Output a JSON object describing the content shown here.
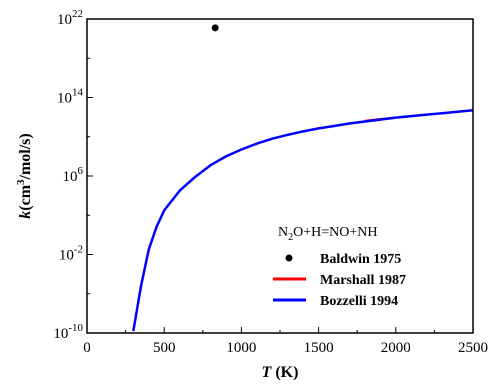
{
  "chart_data": {
    "type": "line",
    "xlabel": {
      "var": "T",
      "unit": " (K)"
    },
    "ylabel": {
      "var": "k",
      "unit_pre": "(cm",
      "unit_sup": "3",
      "unit_post": "/mol/s)"
    },
    "xlim": [
      0,
      2500
    ],
    "ylim_log10": [
      -10,
      22
    ],
    "y_scale": "log",
    "x_ticks": [
      {
        "value": 0,
        "label": "0"
      },
      {
        "value": 500,
        "label": "500"
      },
      {
        "value": 1000,
        "label": "1000"
      },
      {
        "value": 1500,
        "label": "1500"
      },
      {
        "value": 2000,
        "label": "2000"
      },
      {
        "value": 2500,
        "label": "2500"
      }
    ],
    "y_ticks": [
      {
        "exp": 22,
        "label_base": "10",
        "label_exp": "22"
      },
      {
        "exp": 14,
        "label_base": "10",
        "label_exp": "14"
      },
      {
        "exp": 6,
        "label_base": "10",
        "label_exp": "6"
      },
      {
        "exp": -2,
        "label_base": "10",
        "label_exp": "-2"
      },
      {
        "exp": -10,
        "label_base": "10",
        "label_exp": "-10"
      }
    ],
    "legend": {
      "title": {
        "a": "N",
        "a_sub": "2",
        "b": "O+H=NO+NH"
      },
      "placement": "lower-right"
    },
    "series": [
      {
        "name": "Baldwin 1975",
        "kind": "scatter",
        "color": "#000000",
        "points": [
          {
            "x": 830,
            "log10y": 21.1
          }
        ]
      },
      {
        "name": "Marshall 1987",
        "kind": "line",
        "color": "#ff0000",
        "points": [
          {
            "x": 1800,
            "log10y": 11.6
          },
          {
            "x": 1900,
            "log10y": 11.78
          },
          {
            "x": 2000,
            "log10y": 11.95
          }
        ]
      },
      {
        "name": "Bozzelli 1994",
        "kind": "line",
        "color": "#0000ff",
        "points": [
          {
            "x": 300,
            "log10y": -9.8
          },
          {
            "x": 350,
            "log10y": -5.2
          },
          {
            "x": 400,
            "log10y": -1.5
          },
          {
            "x": 450,
            "log10y": 0.8
          },
          {
            "x": 500,
            "log10y": 2.5
          },
          {
            "x": 600,
            "log10y": 4.5
          },
          {
            "x": 700,
            "log10y": 5.9
          },
          {
            "x": 800,
            "log10y": 7.1
          },
          {
            "x": 900,
            "log10y": 8.0
          },
          {
            "x": 1000,
            "log10y": 8.7
          },
          {
            "x": 1100,
            "log10y": 9.3
          },
          {
            "x": 1200,
            "log10y": 9.8
          },
          {
            "x": 1300,
            "log10y": 10.2
          },
          {
            "x": 1400,
            "log10y": 10.55
          },
          {
            "x": 1500,
            "log10y": 10.85
          },
          {
            "x": 1600,
            "log10y": 11.1
          },
          {
            "x": 1700,
            "log10y": 11.35
          },
          {
            "x": 1800,
            "log10y": 11.55
          },
          {
            "x": 1900,
            "log10y": 11.75
          },
          {
            "x": 2000,
            "log10y": 11.95
          },
          {
            "x": 2100,
            "log10y": 12.1
          },
          {
            "x": 2200,
            "log10y": 12.25
          },
          {
            "x": 2300,
            "log10y": 12.4
          },
          {
            "x": 2400,
            "log10y": 12.55
          },
          {
            "x": 2500,
            "log10y": 12.7
          }
        ]
      }
    ]
  }
}
